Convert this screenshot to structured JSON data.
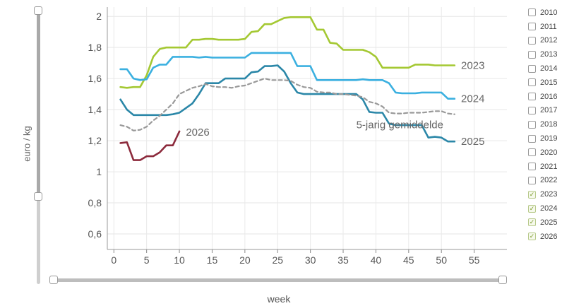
{
  "axis": {
    "ylabel": "euro / kg",
    "xlabel": "week"
  },
  "legend": {
    "items": [
      {
        "year": "2010",
        "checked": false
      },
      {
        "year": "2011",
        "checked": false
      },
      {
        "year": "2012",
        "checked": false
      },
      {
        "year": "2013",
        "checked": false
      },
      {
        "year": "2014",
        "checked": false
      },
      {
        "year": "2015",
        "checked": false
      },
      {
        "year": "2016",
        "checked": false
      },
      {
        "year": "2017",
        "checked": false
      },
      {
        "year": "2018",
        "checked": false
      },
      {
        "year": "2019",
        "checked": false
      },
      {
        "year": "2020",
        "checked": false
      },
      {
        "year": "2021",
        "checked": false
      },
      {
        "year": "2022",
        "checked": false
      },
      {
        "year": "2023",
        "checked": true
      },
      {
        "year": "2024",
        "checked": true
      },
      {
        "year": "2025",
        "checked": true
      },
      {
        "year": "2026",
        "checked": true
      }
    ]
  },
  "colors": {
    "2023": "#a4c832",
    "2024": "#3bb0e0",
    "2025": "#2b87a8",
    "2026": "#8c2a3c",
    "5-jarig gemiddelde": "#999999"
  },
  "chart_data": {
    "type": "line",
    "xlabel": "week",
    "ylabel": "euro / kg",
    "xlim": [
      -1,
      60
    ],
    "ylim": [
      0.5,
      2.06
    ],
    "xticks": [
      0,
      5,
      10,
      15,
      20,
      25,
      30,
      35,
      40,
      45,
      50,
      55
    ],
    "yticks": [
      0.6,
      0.8,
      1,
      1.2,
      1.4,
      1.6,
      1.8,
      2
    ],
    "ytick_labels": [
      "0,6",
      "0,8",
      "1",
      "1,2",
      "1,4",
      "1,6",
      "1,8",
      "2"
    ],
    "grid": true,
    "series": [
      {
        "name": "2023",
        "label_week": 53,
        "points": [
          [
            1,
            1.545
          ],
          [
            2,
            1.54
          ],
          [
            3,
            1.545
          ],
          [
            4,
            1.545
          ],
          [
            5,
            1.62
          ],
          [
            6,
            1.74
          ],
          [
            7,
            1.79
          ],
          [
            8,
            1.8
          ],
          [
            9,
            1.8
          ],
          [
            10,
            1.8
          ],
          [
            11,
            1.8
          ],
          [
            12,
            1.85
          ],
          [
            13,
            1.85
          ],
          [
            14,
            1.855
          ],
          [
            15,
            1.855
          ],
          [
            16,
            1.85
          ],
          [
            17,
            1.85
          ],
          [
            18,
            1.85
          ],
          [
            19,
            1.85
          ],
          [
            20,
            1.855
          ],
          [
            21,
            1.9
          ],
          [
            22,
            1.905
          ],
          [
            23,
            1.95
          ],
          [
            24,
            1.95
          ],
          [
            25,
            1.97
          ],
          [
            26,
            1.99
          ],
          [
            27,
            1.995
          ],
          [
            28,
            1.995
          ],
          [
            29,
            1.995
          ],
          [
            30,
            1.995
          ],
          [
            31,
            1.915
          ],
          [
            32,
            1.915
          ],
          [
            33,
            1.83
          ],
          [
            34,
            1.825
          ],
          [
            35,
            1.785
          ],
          [
            36,
            1.785
          ],
          [
            37,
            1.785
          ],
          [
            38,
            1.785
          ],
          [
            39,
            1.77
          ],
          [
            40,
            1.74
          ],
          [
            41,
            1.67
          ],
          [
            42,
            1.67
          ],
          [
            43,
            1.67
          ],
          [
            44,
            1.67
          ],
          [
            45,
            1.67
          ],
          [
            46,
            1.69
          ],
          [
            47,
            1.69
          ],
          [
            48,
            1.69
          ],
          [
            49,
            1.685
          ],
          [
            50,
            1.685
          ],
          [
            51,
            1.685
          ],
          [
            52,
            1.685
          ]
        ]
      },
      {
        "name": "2024",
        "label_week": 53,
        "points": [
          [
            1,
            1.66
          ],
          [
            2,
            1.66
          ],
          [
            3,
            1.6
          ],
          [
            4,
            1.59
          ],
          [
            5,
            1.595
          ],
          [
            6,
            1.67
          ],
          [
            7,
            1.69
          ],
          [
            8,
            1.69
          ],
          [
            9,
            1.74
          ],
          [
            10,
            1.74
          ],
          [
            11,
            1.74
          ],
          [
            12,
            1.74
          ],
          [
            13,
            1.735
          ],
          [
            14,
            1.74
          ],
          [
            15,
            1.735
          ],
          [
            16,
            1.735
          ],
          [
            17,
            1.735
          ],
          [
            18,
            1.735
          ],
          [
            19,
            1.735
          ],
          [
            20,
            1.735
          ],
          [
            21,
            1.765
          ],
          [
            22,
            1.765
          ],
          [
            23,
            1.765
          ],
          [
            24,
            1.765
          ],
          [
            25,
            1.765
          ],
          [
            26,
            1.765
          ],
          [
            27,
            1.765
          ],
          [
            28,
            1.68
          ],
          [
            29,
            1.68
          ],
          [
            30,
            1.68
          ],
          [
            31,
            1.59
          ],
          [
            32,
            1.59
          ],
          [
            33,
            1.59
          ],
          [
            34,
            1.59
          ],
          [
            35,
            1.59
          ],
          [
            36,
            1.59
          ],
          [
            37,
            1.59
          ],
          [
            38,
            1.595
          ],
          [
            39,
            1.59
          ],
          [
            40,
            1.59
          ],
          [
            41,
            1.59
          ],
          [
            42,
            1.57
          ],
          [
            43,
            1.51
          ],
          [
            44,
            1.505
          ],
          [
            45,
            1.505
          ],
          [
            46,
            1.505
          ],
          [
            47,
            1.51
          ],
          [
            48,
            1.51
          ],
          [
            49,
            1.51
          ],
          [
            50,
            1.51
          ],
          [
            51,
            1.47
          ],
          [
            52,
            1.47
          ]
        ]
      },
      {
        "name": "2025",
        "label_week": 53,
        "points": [
          [
            1,
            1.465
          ],
          [
            2,
            1.4
          ],
          [
            3,
            1.365
          ],
          [
            4,
            1.365
          ],
          [
            5,
            1.365
          ],
          [
            6,
            1.365
          ],
          [
            7,
            1.365
          ],
          [
            8,
            1.365
          ],
          [
            9,
            1.37
          ],
          [
            10,
            1.38
          ],
          [
            11,
            1.41
          ],
          [
            12,
            1.44
          ],
          [
            13,
            1.5
          ],
          [
            14,
            1.57
          ],
          [
            15,
            1.57
          ],
          [
            16,
            1.57
          ],
          [
            17,
            1.6
          ],
          [
            18,
            1.6
          ],
          [
            19,
            1.6
          ],
          [
            20,
            1.6
          ],
          [
            21,
            1.64
          ],
          [
            22,
            1.645
          ],
          [
            23,
            1.68
          ],
          [
            24,
            1.68
          ],
          [
            25,
            1.685
          ],
          [
            26,
            1.645
          ],
          [
            27,
            1.57
          ],
          [
            28,
            1.51
          ],
          [
            29,
            1.5
          ],
          [
            30,
            1.5
          ],
          [
            31,
            1.5
          ],
          [
            32,
            1.5
          ],
          [
            33,
            1.5
          ],
          [
            34,
            1.5
          ],
          [
            35,
            1.5
          ],
          [
            36,
            1.5
          ],
          [
            37,
            1.5
          ],
          [
            38,
            1.465
          ],
          [
            39,
            1.385
          ],
          [
            40,
            1.38
          ],
          [
            41,
            1.38
          ],
          [
            42,
            1.31
          ],
          [
            43,
            1.3
          ],
          [
            44,
            1.3
          ],
          [
            45,
            1.3
          ],
          [
            46,
            1.3
          ],
          [
            47,
            1.3
          ],
          [
            48,
            1.22
          ],
          [
            49,
            1.225
          ],
          [
            50,
            1.22
          ],
          [
            51,
            1.195
          ],
          [
            52,
            1.195
          ]
        ]
      },
      {
        "name": "2026",
        "label_week": 11,
        "points": [
          [
            1,
            1.185
          ],
          [
            2,
            1.19
          ],
          [
            3,
            1.075
          ],
          [
            4,
            1.075
          ],
          [
            5,
            1.1
          ],
          [
            6,
            1.1
          ],
          [
            7,
            1.125
          ],
          [
            8,
            1.17
          ],
          [
            9,
            1.17
          ],
          [
            10,
            1.26
          ]
        ]
      },
      {
        "name": "5-jarig gemiddelde",
        "dashed": true,
        "label_week": 37,
        "points": [
          [
            1,
            1.3
          ],
          [
            2,
            1.29
          ],
          [
            3,
            1.265
          ],
          [
            4,
            1.27
          ],
          [
            5,
            1.29
          ],
          [
            6,
            1.33
          ],
          [
            7,
            1.36
          ],
          [
            8,
            1.4
          ],
          [
            9,
            1.44
          ],
          [
            10,
            1.5
          ],
          [
            11,
            1.52
          ],
          [
            12,
            1.54
          ],
          [
            13,
            1.55
          ],
          [
            14,
            1.565
          ],
          [
            15,
            1.55
          ],
          [
            16,
            1.545
          ],
          [
            17,
            1.545
          ],
          [
            18,
            1.54
          ],
          [
            19,
            1.55
          ],
          [
            20,
            1.555
          ],
          [
            21,
            1.57
          ],
          [
            22,
            1.585
          ],
          [
            23,
            1.6
          ],
          [
            24,
            1.59
          ],
          [
            25,
            1.59
          ],
          [
            26,
            1.59
          ],
          [
            27,
            1.585
          ],
          [
            28,
            1.56
          ],
          [
            29,
            1.545
          ],
          [
            30,
            1.54
          ],
          [
            31,
            1.515
          ],
          [
            32,
            1.51
          ],
          [
            33,
            1.51
          ],
          [
            34,
            1.5
          ],
          [
            35,
            1.5
          ],
          [
            36,
            1.495
          ],
          [
            37,
            1.49
          ],
          [
            38,
            1.48
          ],
          [
            39,
            1.45
          ],
          [
            40,
            1.44
          ],
          [
            41,
            1.42
          ],
          [
            42,
            1.38
          ],
          [
            43,
            1.375
          ],
          [
            44,
            1.375
          ],
          [
            45,
            1.38
          ],
          [
            46,
            1.38
          ],
          [
            47,
            1.38
          ],
          [
            48,
            1.385
          ],
          [
            49,
            1.39
          ],
          [
            50,
            1.39
          ],
          [
            51,
            1.375
          ],
          [
            52,
            1.37
          ]
        ]
      }
    ]
  }
}
